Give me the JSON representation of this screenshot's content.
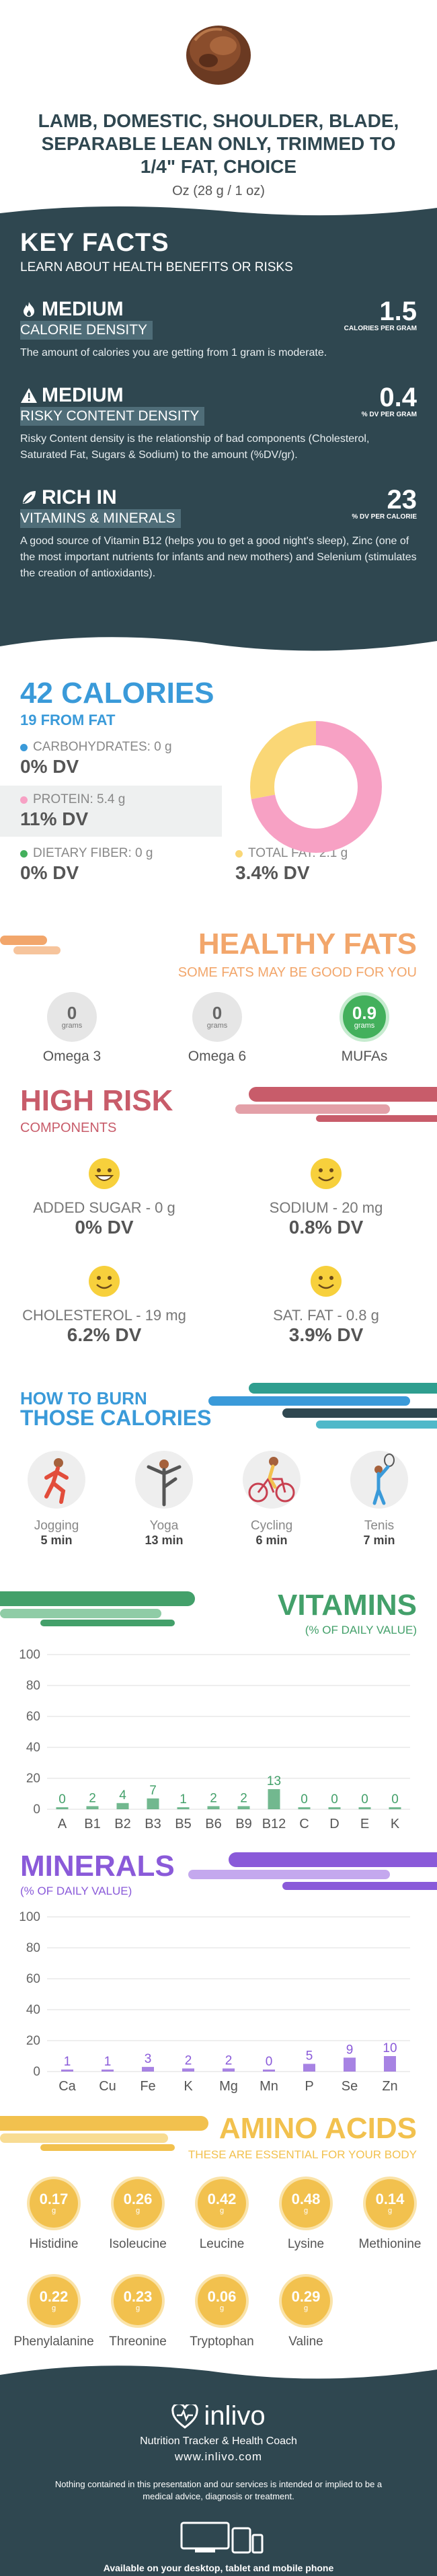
{
  "header": {
    "title": "LAMB, DOMESTIC, SHOULDER, BLADE, SEPARABLE LEAN ONLY, TRIMMED TO 1/4\" FAT, CHOICE",
    "serving": "Oz (28 g / 1 oz)"
  },
  "key_facts": {
    "title": "KEY FACTS",
    "subtitle": "LEARN ABOUT HEALTH BENEFITS OR RISKS",
    "items": [
      {
        "level": "MEDIUM",
        "category": "CALORIE DENSITY",
        "value": "1.5",
        "unit": "CALORIES PER GRAM",
        "description": "The amount of calories you are getting from 1 gram is moderate.",
        "icon": "flame-icon"
      },
      {
        "level": "MEDIUM",
        "category": "RISKY CONTENT DENSITY",
        "value": "0.4",
        "unit": "% DV PER GRAM",
        "description": "Risky Content density is the relationship of bad components (Cholesterol, Saturated Fat, Sugars & Sodium) to the amount (%DV/gr).",
        "icon": "warning-icon"
      },
      {
        "level": "RICH  IN",
        "category": "VITAMINS & MINERALS",
        "value": "23",
        "unit": "% DV PER CALORIE",
        "description": "A good source of Vitamin B12 (helps you to get a good night's sleep), Zinc (one of the most important nutrients for infants and new mothers) and Selenium (stimulates the creation of antioxidants).",
        "icon": "leaf-icon"
      }
    ]
  },
  "calories": {
    "title": "42 CALORIES",
    "from_fat": "19 FROM FAT",
    "macros": {
      "carbs": {
        "label": "CARBOHYDRATES: 0 g",
        "dv": "0% DV",
        "color": "#3a9ad9"
      },
      "protein": {
        "label": "PROTEIN: 5.4 g",
        "dv": "11% DV",
        "color": "#f7a1c4"
      },
      "fiber": {
        "label": "DIETARY FIBER: 0 g",
        "dv": "0% DV",
        "color": "#43b05c"
      },
      "fat": {
        "label": "TOTAL FAT: 2.1 g",
        "dv": "3.4% DV",
        "color": "#fad776"
      }
    },
    "donut": {
      "protein": 5.4,
      "fat": 2.1,
      "carbs": 0
    }
  },
  "healthy_fats": {
    "title": "HEALTHY FATS",
    "subtitle": "SOME FATS MAY BE GOOD FOR YOU",
    "items": [
      {
        "value": "0",
        "unit": "grams",
        "name": "Omega 3"
      },
      {
        "value": "0",
        "unit": "grams",
        "name": "Omega 6"
      },
      {
        "value": "0.9",
        "unit": "grams",
        "name": "MUFAs"
      }
    ]
  },
  "high_risk": {
    "title": "HIGH RISK",
    "subtitle": "COMPONENTS",
    "items": [
      {
        "label": "ADDED SUGAR - 0 g",
        "dv": "0% DV",
        "face": "grin-face-icon"
      },
      {
        "label": "SODIUM - 20 mg",
        "dv": "0.8% DV",
        "face": "smile-face-icon"
      },
      {
        "label": "CHOLESTEROL - 19 mg",
        "dv": "6.2% DV",
        "face": "smile-face-icon"
      },
      {
        "label": "SAT. FAT - 0.8 g",
        "dv": "3.9% DV",
        "face": "smile-face-icon"
      }
    ]
  },
  "burn": {
    "line1": "HOW TO BURN",
    "line2": "THOSE CALORIES",
    "activities": [
      {
        "name": "Jogging",
        "time": "5 min"
      },
      {
        "name": "Yoga",
        "time": "13 min"
      },
      {
        "name": "Cycling",
        "time": "6 min"
      },
      {
        "name": "Tenis",
        "time": "7 min"
      }
    ]
  },
  "vitamins": {
    "title": "VITAMINS",
    "subtitle": "(% OF DAILY VALUE)",
    "color": "#43a06a"
  },
  "minerals": {
    "title": "MINERALS",
    "subtitle": "(% OF DAILY VALUE)",
    "color": "#8a5ad9"
  },
  "chart_data": [
    {
      "type": "bar",
      "title": "VITAMINS",
      "subtitle": "(% OF DAILY VALUE)",
      "categories": [
        "A",
        "B1",
        "B2",
        "B3",
        "B5",
        "B6",
        "B9",
        "B12",
        "C",
        "D",
        "E",
        "K"
      ],
      "values": [
        0,
        2,
        4,
        7,
        1,
        2,
        2,
        13,
        0,
        0,
        0,
        0
      ],
      "ylim": [
        0,
        100
      ],
      "yticks": [
        0,
        20,
        40,
        60,
        80,
        100
      ]
    },
    {
      "type": "bar",
      "title": "MINERALS",
      "subtitle": "(% OF DAILY VALUE)",
      "categories": [
        "Ca",
        "Cu",
        "Fe",
        "K",
        "Mg",
        "Mn",
        "P",
        "Se",
        "Zn"
      ],
      "values": [
        1,
        1,
        3,
        2,
        2,
        0,
        5,
        9,
        10
      ],
      "ylim": [
        0,
        100
      ],
      "yticks": [
        0,
        20,
        40,
        60,
        80,
        100
      ]
    }
  ],
  "amino": {
    "title": "AMINO ACIDS",
    "subtitle": "THESE ARE ESSENTIAL FOR YOUR BODY",
    "unit": "g",
    "items": [
      {
        "value": "0.17",
        "name": "Histidine"
      },
      {
        "value": "0.26",
        "name": "Isoleucine"
      },
      {
        "value": "0.42",
        "name": "Leucine"
      },
      {
        "value": "0.48",
        "name": "Lysine"
      },
      {
        "value": "0.14",
        "name": "Methionine"
      },
      {
        "value": "0.22",
        "name": "Phenylalanine"
      },
      {
        "value": "0.23",
        "name": "Threonine"
      },
      {
        "value": "0.06",
        "name": "Tryptophan"
      },
      {
        "value": "0.29",
        "name": "Valine"
      }
    ]
  },
  "footer": {
    "brand": "inlivo",
    "tagline": "Nutrition Tracker & Health Coach",
    "url": "www.inlivo.com",
    "disclaimer": "Nothing contained in this presentation and our services is intended or implied to be a medical advice, diagnosis or treatment.",
    "available": "Available on your desktop, tablet and mobile phone"
  }
}
